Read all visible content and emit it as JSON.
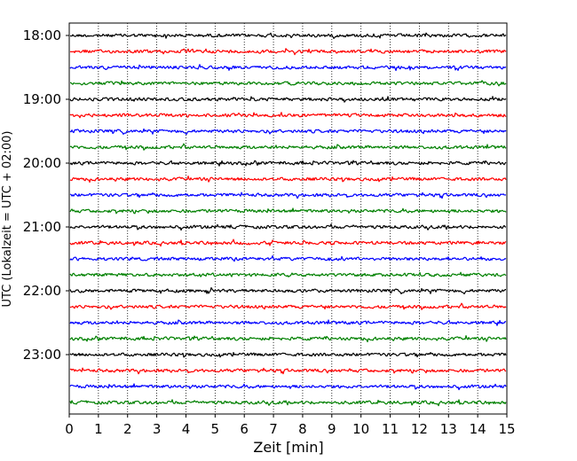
{
  "chart_data": {
    "type": "line",
    "title": "",
    "xlabel": "Zeit  [min]",
    "ylabel": "UTC (Lokalzeit = UTC + 02:00)",
    "x_ticks": [
      0,
      1,
      2,
      3,
      4,
      5,
      6,
      7,
      8,
      9,
      10,
      11,
      12,
      13,
      14,
      15
    ],
    "xlim": [
      0,
      15
    ],
    "grid": "vertical dotted lines at each minute",
    "y_tick_labels": [
      "18:00",
      "19:00",
      "20:00",
      "21:00",
      "22:00",
      "23:00"
    ],
    "trace_interval_minutes": 15,
    "trace_start": "18:00",
    "trace_count": 24,
    "trace_colors": [
      "#000000",
      "#ff0000",
      "#0000ff",
      "#008000"
    ],
    "line_width": 1.2
  }
}
